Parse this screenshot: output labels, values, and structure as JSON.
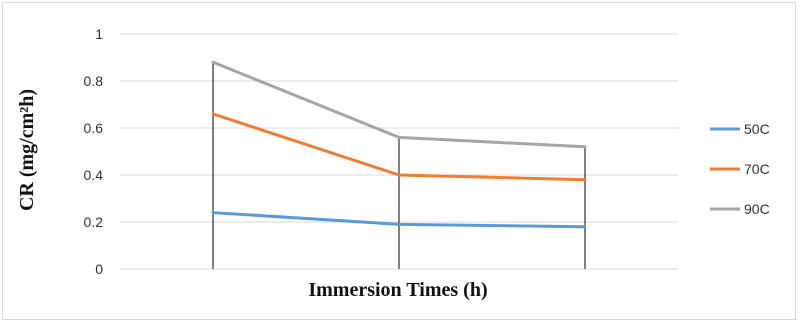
{
  "chart_data": {
    "type": "line",
    "title": "",
    "xlabel": "Immersion Times  (h)",
    "ylabel": "CR (mg/cm²h)",
    "ylim": [
      0,
      1
    ],
    "yticks": [
      0,
      0.2,
      0.4,
      0.6,
      0.8,
      1
    ],
    "ytick_labels": [
      "0",
      "0.2",
      "0.4",
      "0.6",
      "0.8",
      "1"
    ],
    "x": [
      1,
      2,
      3
    ],
    "grid": true,
    "legend_position": "right",
    "drop_lines": true,
    "series": [
      {
        "name": "50C",
        "color": "#5b9bd5",
        "values": [
          0.24,
          0.19,
          0.18
        ]
      },
      {
        "name": "70C",
        "color": "#ed7d31",
        "values": [
          0.66,
          0.4,
          0.38
        ]
      },
      {
        "name": "90C",
        "color": "#a5a5a5",
        "values": [
          0.88,
          0.56,
          0.52
        ]
      }
    ]
  }
}
